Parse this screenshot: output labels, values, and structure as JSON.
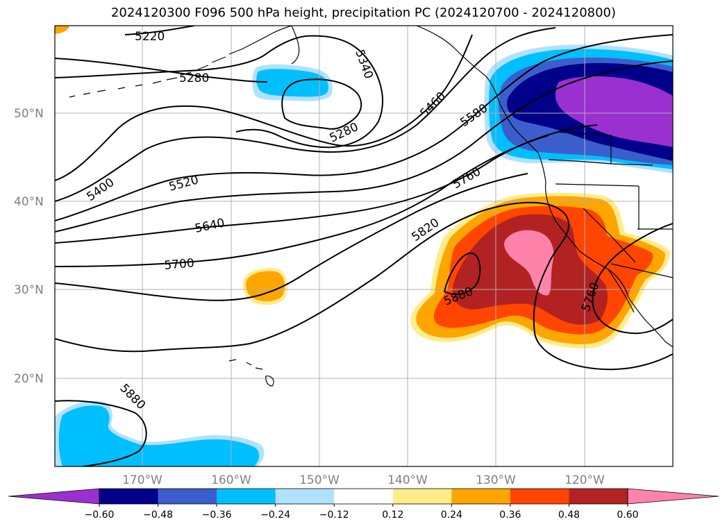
{
  "title": "2024120300 F096 500 hPa height, precipitation PC (2024120700 - 2024120800)",
  "lat_labels": [
    "50°N",
    "40°N",
    "30°N",
    "20°N"
  ],
  "lon_labels": [
    "170°W",
    "160°W",
    "150°W",
    "140°W",
    "130°W",
    "120°W"
  ],
  "contour_labels": [
    "5220",
    "5280",
    "5340",
    "5280",
    "5400",
    "5460",
    "5520",
    "5580",
    "5640",
    "5700",
    "5760",
    "5820",
    "5880",
    "5760",
    "5880"
  ],
  "colorbar": {
    "ticks": [
      "−0.60",
      "−0.48",
      "−0.36",
      "−0.24",
      "−0.12",
      "0.12",
      "0.24",
      "0.36",
      "0.48",
      "0.60"
    ],
    "colors": [
      "#9b30d0",
      "#00008b",
      "#3a5fcd",
      "#00bfff",
      "#b0e2ff",
      "#ffffff",
      "#ffec8b",
      "#ffa500",
      "#ff4500",
      "#b22222",
      "#ff82ab"
    ]
  }
}
